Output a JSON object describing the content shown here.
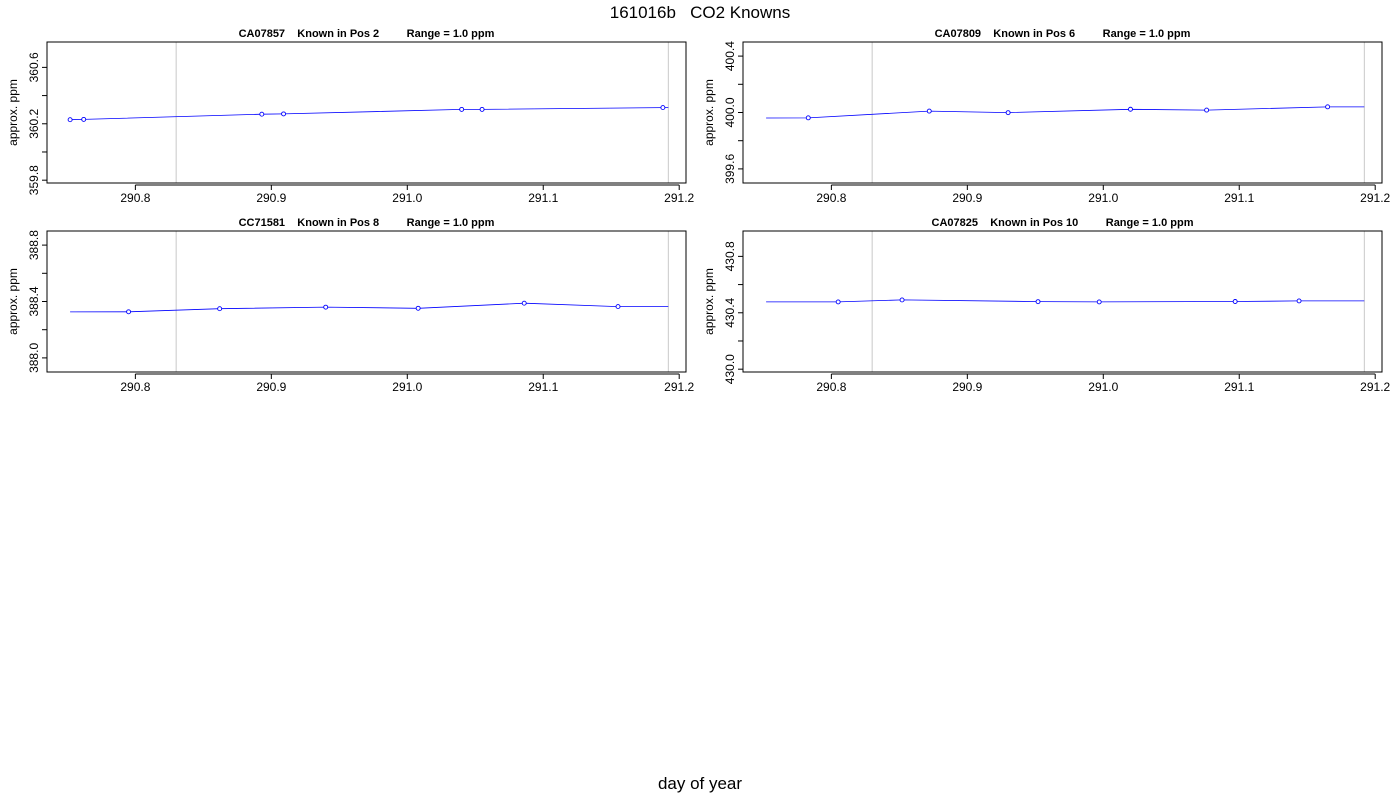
{
  "page": {
    "title": "161016b   CO2 Knowns",
    "xlabel": "day of year"
  },
  "colors": {
    "series_line": "#0000ff",
    "series_point": "#0000ff",
    "vline": "#c8c8c8",
    "axis": "#000000"
  },
  "chart_data": [
    {
      "type": "line",
      "title": "CA07857    Known in Pos 2         Range = 1.0 ppm",
      "ylabel": "approx. ppm",
      "xlim": [
        290.735,
        291.205
      ],
      "ylim": [
        359.78,
        360.78
      ],
      "x_ticks": [
        "290.8",
        "290.9",
        "291.0",
        "291.1",
        "291.2"
      ],
      "y_ticks": [
        "359.8",
        "360.2",
        "360.6"
      ],
      "y_minor_ticks": [
        360.0,
        360.4
      ],
      "vlines": [
        290.83,
        291.192
      ],
      "line": {
        "x": [
          290.752,
          290.762,
          290.893,
          290.909,
          291.04,
          291.055,
          291.188,
          291.192
        ],
        "y": [
          360.229,
          360.231,
          360.268,
          360.27,
          360.302,
          360.302,
          360.315,
          360.315
        ]
      },
      "points": {
        "x": [
          290.752,
          290.762,
          290.893,
          290.909,
          291.04,
          291.055,
          291.188
        ],
        "y": [
          360.229,
          360.231,
          360.268,
          360.27,
          360.302,
          360.302,
          360.315
        ]
      }
    },
    {
      "type": "line",
      "title": "CA07809    Known in Pos 6         Range = 1.0 ppm",
      "ylabel": "approx. ppm",
      "xlim": [
        290.735,
        291.205
      ],
      "ylim": [
        399.5,
        400.5
      ],
      "x_ticks": [
        "290.8",
        "290.9",
        "291.0",
        "291.1",
        "291.2"
      ],
      "y_ticks": [
        "399.6",
        "400.0",
        "400.4"
      ],
      "y_minor_ticks": [
        399.8,
        400.2
      ],
      "vlines": [
        290.83,
        291.192
      ],
      "line": {
        "x": [
          290.752,
          290.783,
          290.872,
          290.93,
          291.02,
          291.076,
          291.165,
          291.192
        ],
        "y": [
          399.961,
          399.962,
          400.01,
          399.999,
          400.023,
          400.017,
          400.04,
          400.04
        ]
      },
      "points": {
        "x": [
          290.783,
          290.872,
          290.93,
          291.02,
          291.076,
          291.165
        ],
        "y": [
          399.962,
          400.01,
          399.999,
          400.023,
          400.017,
          400.04
        ]
      }
    },
    {
      "type": "line",
      "title": "CC71581    Known in Pos 8         Range = 1.0 ppm",
      "ylabel": "approx. ppm",
      "xlim": [
        290.735,
        291.205
      ],
      "ylim": [
        387.9,
        388.9
      ],
      "x_ticks": [
        "290.8",
        "290.9",
        "291.0",
        "291.1",
        "291.2"
      ],
      "y_ticks": [
        "388.0",
        "388.4",
        "388.8"
      ],
      "y_minor_ticks": [
        388.2,
        388.6
      ],
      "vlines": [
        290.83,
        291.192
      ],
      "line": {
        "x": [
          290.752,
          290.795,
          290.862,
          290.94,
          291.008,
          291.086,
          291.155,
          291.192
        ],
        "y": [
          388.326,
          388.327,
          388.349,
          388.36,
          388.352,
          388.388,
          388.364,
          388.364
        ]
      },
      "points": {
        "x": [
          290.795,
          290.862,
          290.94,
          291.008,
          291.086,
          291.155
        ],
        "y": [
          388.327,
          388.349,
          388.36,
          388.352,
          388.388,
          388.364
        ]
      }
    },
    {
      "type": "line",
      "title": "CA07825    Known in Pos 10         Range = 1.0 ppm",
      "ylabel": "approx. ppm",
      "xlim": [
        290.735,
        291.205
      ],
      "ylim": [
        429.98,
        430.98
      ],
      "x_ticks": [
        "290.8",
        "290.9",
        "291.0",
        "291.1",
        "291.2"
      ],
      "y_ticks": [
        "430.0",
        "430.4",
        "430.8"
      ],
      "y_minor_ticks": [
        430.2,
        430.6
      ],
      "vlines": [
        290.83,
        291.192
      ],
      "line": {
        "x": [
          290.752,
          290.805,
          290.852,
          290.952,
          290.997,
          291.097,
          291.144,
          291.192
        ],
        "y": [
          430.477,
          430.477,
          430.491,
          430.479,
          430.477,
          430.48,
          430.484,
          430.484
        ]
      },
      "points": {
        "x": [
          290.805,
          290.852,
          290.952,
          290.997,
          291.097,
          291.144
        ],
        "y": [
          430.477,
          430.491,
          430.479,
          430.477,
          430.48,
          430.484
        ]
      }
    }
  ]
}
